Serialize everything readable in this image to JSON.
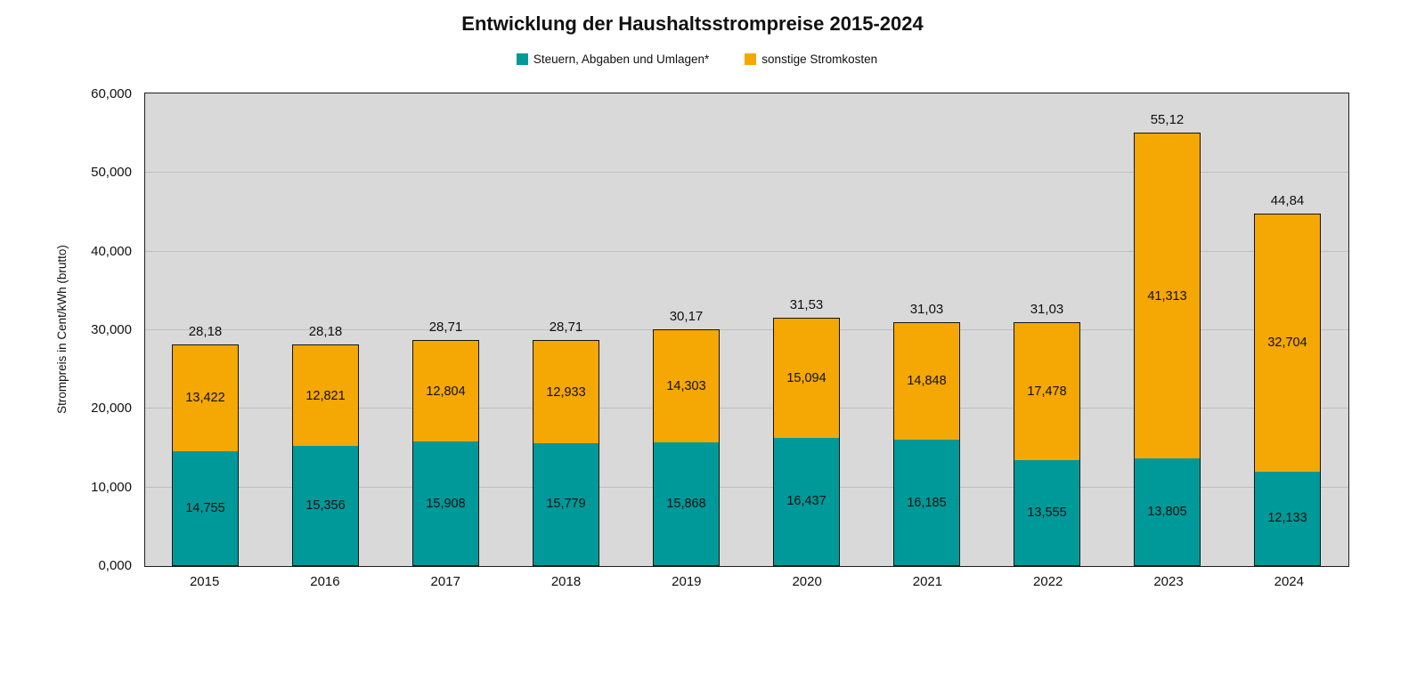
{
  "title": "Entwicklung der Haushaltsstrompreise 2015-2024",
  "legend": {
    "items": [
      {
        "label": "Steuern, Abgaben und Umlagen*",
        "color": "#009999"
      },
      {
        "label": "sonstige Stromkosten",
        "color": "#f5a704"
      }
    ]
  },
  "colors": {
    "plot_background": "#d9d9d9",
    "gridline": "#bebebe",
    "bar_border": "#141414",
    "steuern": "#009999",
    "sonstige": "#f5a704"
  },
  "chart_data": {
    "type": "bar",
    "stacked": true,
    "title": "Entwicklung der Haushaltsstrompreise 2015-2024",
    "xlabel": "",
    "ylabel": "Strompreis in Cent/kWh (brutto)",
    "ylim": [
      0,
      60
    ],
    "yticks": [
      {
        "value": 0,
        "label": "0,000"
      },
      {
        "value": 10,
        "label": "10,000"
      },
      {
        "value": 20,
        "label": "20,000"
      },
      {
        "value": 30,
        "label": "30,000"
      },
      {
        "value": 40,
        "label": "40,000"
      },
      {
        "value": 50,
        "label": "50,000"
      },
      {
        "value": 60,
        "label": "60,000"
      }
    ],
    "grid": true,
    "legend_position": "top",
    "categories": [
      "2015",
      "2016",
      "2017",
      "2018",
      "2019",
      "2020",
      "2021",
      "2022",
      "2023",
      "2024"
    ],
    "series": [
      {
        "name": "Steuern, Abgaben und Umlagen*",
        "color": "#009999",
        "values": [
          14.755,
          15.356,
          15.908,
          15.779,
          15.868,
          16.437,
          16.185,
          13.555,
          13.805,
          12.133
        ],
        "labels": [
          "14,755",
          "15,356",
          "15,908",
          "15,779",
          "15,868",
          "16,437",
          "16,185",
          "13,555",
          "13,805",
          "12,133"
        ]
      },
      {
        "name": "sonstige Stromkosten",
        "color": "#f5a704",
        "values": [
          13.422,
          12.821,
          12.804,
          12.933,
          14.303,
          15.094,
          14.848,
          17.478,
          41.313,
          32.704
        ],
        "labels": [
          "13,422",
          "12,821",
          "12,804",
          "12,933",
          "14,303",
          "15,094",
          "14,848",
          "17,478",
          "41,313",
          "32,704"
        ]
      }
    ],
    "totals": [
      "28,18",
      "28,18",
      "28,71",
      "28,71",
      "30,17",
      "31,53",
      "31,03",
      "31,03",
      "55,12",
      "44,84"
    ]
  }
}
